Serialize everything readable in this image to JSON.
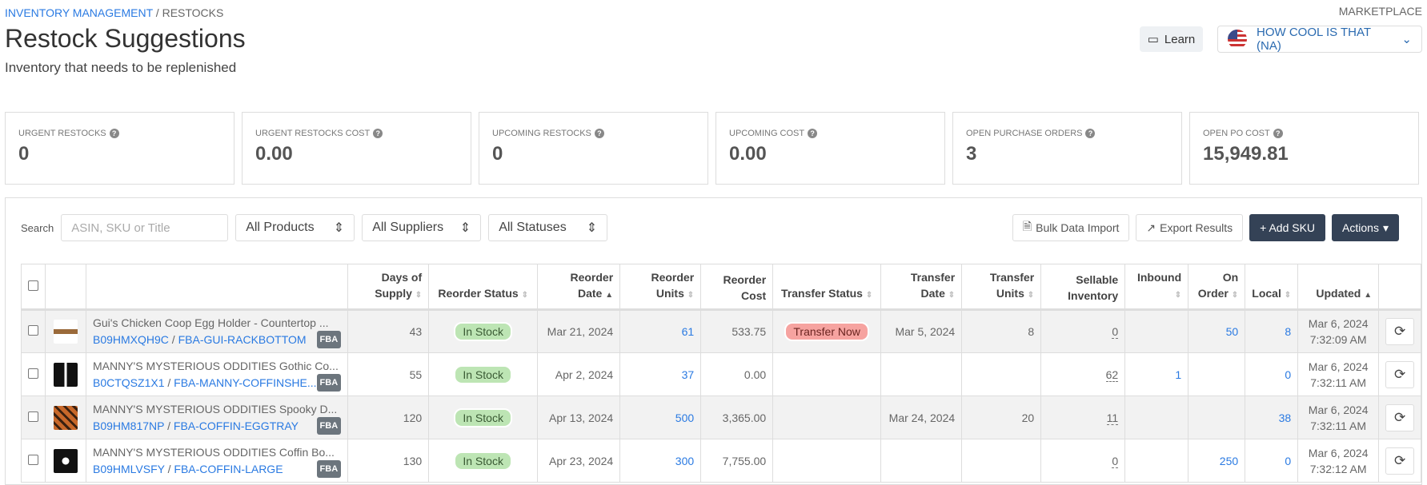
{
  "breadcrumb": [
    "INVENTORY MANAGEMENT",
    "RESTOCKS"
  ],
  "header": {
    "title": "Restock Suggestions",
    "subtitle": "Inventory that needs to be replenished",
    "marketplace_label": "MARKETPLACE",
    "learn_label": "Learn",
    "marketplace_value": "HOW COOL IS THAT (NA)"
  },
  "stats": [
    {
      "label": "URGENT RESTOCKS",
      "value": "0"
    },
    {
      "label": "URGENT RESTOCKS COST",
      "value": "0.00"
    },
    {
      "label": "UPCOMING RESTOCKS",
      "value": "0"
    },
    {
      "label": "UPCOMING COST",
      "value": "0.00"
    },
    {
      "label": "OPEN PURCHASE ORDERS",
      "value": "3"
    },
    {
      "label": "OPEN PO COST",
      "value": "15,949.81"
    }
  ],
  "toolbar": {
    "search_label": "Search",
    "search_placeholder": "ASIN, SKU or Title",
    "products": "All Products",
    "suppliers": "All Suppliers",
    "statuses": "All Statuses",
    "bulk": "Bulk Data Import",
    "export": "Export Results",
    "add": "+ Add SKU",
    "actions": "Actions"
  },
  "columns": [
    "Days of Supply",
    "Reorder Status",
    "Reorder Date",
    "Reorder Units",
    "Reorder Cost",
    "Transfer Status",
    "Transfer Date",
    "Transfer Units",
    "Sellable Inventory",
    "Inbound",
    "On Order",
    "Local",
    "Updated"
  ],
  "rows": [
    {
      "title": "Gui's Chicken Coop Egg Holder - Countertop ...",
      "asin": "B09HMXQH9C",
      "sku": "FBA-GUI-RACKBOTTOM",
      "badge": "FBA",
      "days": "43",
      "status": "In Stock",
      "rdate": "Mar 21, 2024",
      "runits": "61",
      "rcost": "533.75",
      "tstatus": "Transfer Now",
      "tdate": "Mar 5, 2024",
      "tunits": "8",
      "sellable": "0",
      "inbound": "",
      "onorder": "50",
      "local": "8",
      "upd1": "Mar 6, 2024",
      "upd2": "7:32:09 AM"
    },
    {
      "title": "MANNY'S MYSTERIOUS ODDITIES Gothic Co...",
      "asin": "B0CTQSZ1X1",
      "sku": "FBA-MANNY-COFFINSHE...",
      "badge": "FBA",
      "days": "55",
      "status": "In Stock",
      "rdate": "Apr 2, 2024",
      "runits": "37",
      "rcost": "0.00",
      "tstatus": "",
      "tdate": "",
      "tunits": "",
      "sellable": "62",
      "inbound": "1",
      "onorder": "",
      "local": "0",
      "upd1": "Mar 6, 2024",
      "upd2": "7:32:11 AM"
    },
    {
      "title": "MANNY'S MYSTERIOUS ODDITIES Spooky D...",
      "asin": "B09HM817NP",
      "sku": "FBA-COFFIN-EGGTRAY",
      "badge": "FBA",
      "days": "120",
      "status": "In Stock",
      "rdate": "Apr 13, 2024",
      "runits": "500",
      "rcost": "3,365.00",
      "tstatus": "",
      "tdate": "Mar 24, 2024",
      "tunits": "20",
      "sellable": "11",
      "inbound": "",
      "onorder": "",
      "local": "38",
      "upd1": "Mar 6, 2024",
      "upd2": "7:32:11 AM"
    },
    {
      "title": "MANNY'S MYSTERIOUS ODDITIES Coffin Bo...",
      "asin": "B09HMLVSFY",
      "sku": "FBA-COFFIN-LARGE",
      "badge": "FBA",
      "days": "130",
      "status": "In Stock",
      "rdate": "Apr 23, 2024",
      "runits": "300",
      "rcost": "7,755.00",
      "tstatus": "",
      "tdate": "",
      "tunits": "",
      "sellable": "0",
      "inbound": "",
      "onorder": "250",
      "local": "0",
      "upd1": "Mar 6, 2024",
      "upd2": "7:32:12 AM"
    }
  ],
  "colors": {
    "link": "#2a7ae2",
    "dark_button": "#344256",
    "in_stock": "#bde5b4",
    "transfer_now": "#f6a3a0"
  }
}
